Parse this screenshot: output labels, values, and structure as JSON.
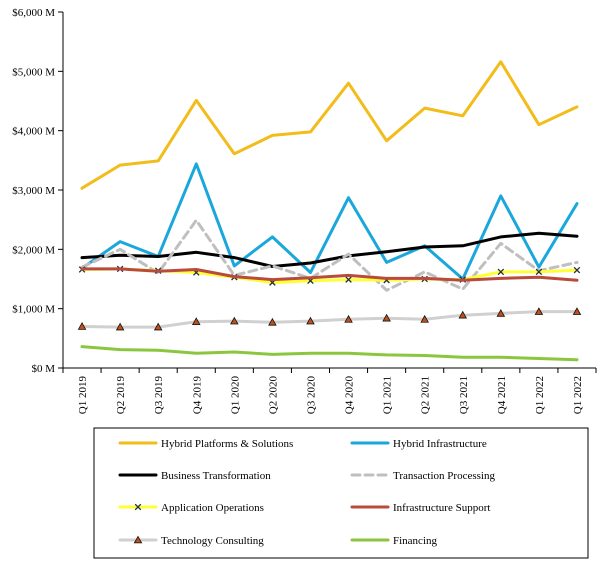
{
  "chart_data": {
    "type": "line",
    "title": "",
    "xlabel": "",
    "ylabel": "",
    "categories": [
      "Q1 2019",
      "Q2 2019",
      "Q3 2019",
      "Q4 2019",
      "Q1 2020",
      "Q2 2020",
      "Q3 2020",
      "Q4 2020",
      "Q1 2021",
      "Q2 2021",
      "Q3 2021",
      "Q4 2021",
      "Q1 2022",
      "Q1 2022"
    ],
    "ylim": [
      0,
      6000
    ],
    "yticks": [
      0,
      1000,
      2000,
      3000,
      4000,
      5000,
      6000
    ],
    "ytick_labels": [
      "$0 M",
      "$1,000 M",
      "$2,000 M",
      "$3,000 M",
      "$4,000 M",
      "$5,000 M",
      "$6,000 M"
    ],
    "grid": false,
    "legend_position": "bottom",
    "series": [
      {
        "name": "Hybrid Platforms & Solutions",
        "color": "#F2BC1B",
        "dash": "solid",
        "marker": "none",
        "values": [
          3030,
          3420,
          3490,
          4510,
          3610,
          3920,
          3980,
          4800,
          3830,
          4380,
          4250,
          5160,
          4100,
          4400
        ]
      },
      {
        "name": "Hybrid Infrastructure",
        "color": "#1AA7DB",
        "dash": "solid",
        "marker": "none",
        "values": [
          1680,
          2130,
          1880,
          3440,
          1720,
          2210,
          1610,
          2870,
          1780,
          2060,
          1500,
          2900,
          1700,
          2770
        ]
      },
      {
        "name": "Business Transformation",
        "color": "#000000",
        "dash": "solid",
        "marker": "none",
        "values": [
          1860,
          1900,
          1880,
          1950,
          1860,
          1710,
          1770,
          1890,
          1960,
          2040,
          2060,
          2210,
          2270,
          2220
        ]
      },
      {
        "name": "Transaction Processing",
        "color": "#BFBFBF",
        "dash": "dashed",
        "marker": "none",
        "values": [
          1700,
          2000,
          1600,
          2490,
          1560,
          1720,
          1510,
          1920,
          1310,
          1620,
          1330,
          2100,
          1640,
          1780
        ]
      },
      {
        "name": "Application Operations",
        "color": "#FFFF33",
        "dash": "solid",
        "marker": "x",
        "values": [
          1660,
          1670,
          1640,
          1610,
          1530,
          1440,
          1470,
          1490,
          1480,
          1500,
          1490,
          1620,
          1620,
          1650
        ]
      },
      {
        "name": "Infrastructure Support",
        "color": "#B84B3B",
        "dash": "solid",
        "marker": "none",
        "values": [
          1670,
          1670,
          1630,
          1660,
          1540,
          1490,
          1520,
          1560,
          1510,
          1510,
          1480,
          1510,
          1530,
          1480
        ]
      },
      {
        "name": "Technology Consulting",
        "color": "#D0D0D0",
        "dash": "solid",
        "marker": "triangle",
        "values": [
          700,
          690,
          690,
          780,
          790,
          770,
          790,
          820,
          840,
          820,
          890,
          920,
          950,
          950
        ]
      },
      {
        "name": "Financing",
        "color": "#8CC63F",
        "dash": "solid",
        "marker": "none",
        "values": [
          360,
          310,
          300,
          250,
          270,
          230,
          250,
          250,
          220,
          210,
          180,
          180,
          160,
          140
        ]
      }
    ]
  }
}
